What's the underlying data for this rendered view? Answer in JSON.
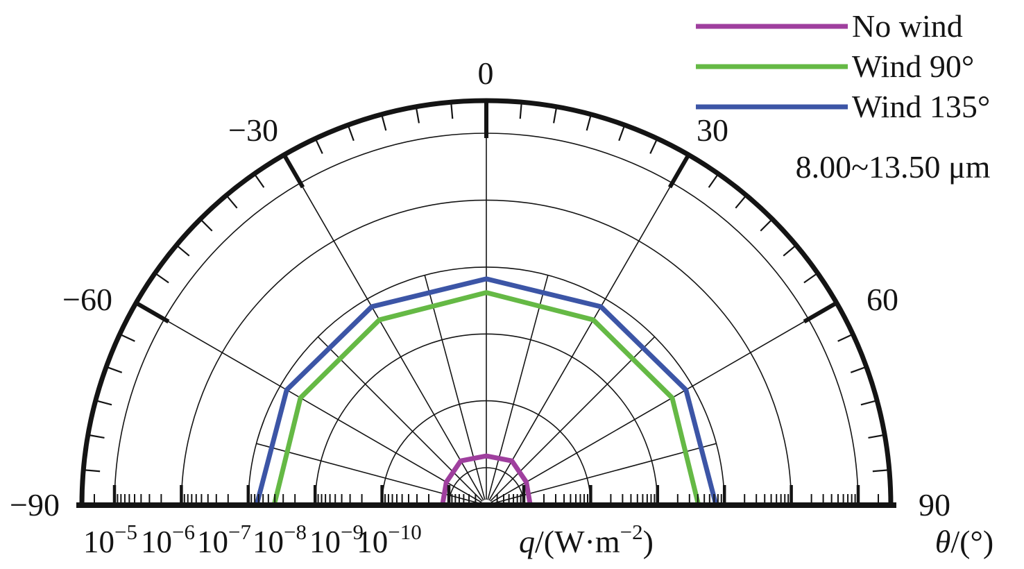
{
  "chart_data": {
    "type": "line",
    "projection": "half-polar",
    "scale": "log",
    "band_annotation": "8.00~13.50 μm",
    "angular_axis": {
      "label_parts": [
        {
          "t": "θ",
          "italic": true,
          "sup": false
        },
        {
          "t": "/(°)",
          "italic": false,
          "sup": false
        }
      ],
      "tick_labels": [
        {
          "angle": -90,
          "text": "−90"
        },
        {
          "angle": -60,
          "text": "−60"
        },
        {
          "angle": -30,
          "text": "−30"
        },
        {
          "angle": 0,
          "text": "0"
        },
        {
          "angle": 30,
          "text": "30"
        },
        {
          "angle": 60,
          "text": "60"
        },
        {
          "angle": 90,
          "text": "90"
        }
      ],
      "minor_tick_step_deg": 5,
      "major_tick_step_deg": 30,
      "spoke_step_deg": 15,
      "range_deg": [
        -90,
        90
      ]
    },
    "radial_axis": {
      "scale": "log",
      "unit_parts": [
        {
          "t": "q",
          "italic": true,
          "sup": false
        },
        {
          "t": "/(W·m",
          "italic": false,
          "sup": false
        },
        {
          "t": "−2",
          "italic": false,
          "sup": true
        },
        {
          "t": ")",
          "italic": false,
          "sup": false
        }
      ],
      "tick_labels": [
        {
          "base": "10",
          "exp": "−5",
          "value": 1e-05
        },
        {
          "base": "10",
          "exp": "−6",
          "value": 1e-06
        },
        {
          "base": "10",
          "exp": "−7",
          "value": 1e-07
        },
        {
          "base": "10",
          "exp": "−8",
          "value": 1e-08
        },
        {
          "base": "10",
          "exp": "−9",
          "value": 1e-09
        },
        {
          "base": "10",
          "exp": "−10",
          "value": 1e-10
        }
      ],
      "direction": "outward-increasing",
      "grid": true
    },
    "legend": {
      "position": "top-right",
      "items": [
        {
          "label": "No wind",
          "color": "#9F3F9E"
        },
        {
          "label": "Wind 90°",
          "color": "#65B945"
        },
        {
          "label": "Wind 135°",
          "color": "#3C55A6"
        }
      ]
    },
    "series": [
      {
        "name": "No wind",
        "color": "#9F3F9E",
        "angles_deg": [
          -90,
          -60,
          -30,
          0,
          30,
          60,
          90
        ],
        "values_w_m2": [
          1.25e-10,
          1.35e-10,
          1.6e-10,
          1.5e-10,
          1.6e-10,
          1.35e-10,
          1.25e-10
        ]
      },
      {
        "name": "Wind 90°",
        "color": "#65B945",
        "angles_deg": [
          -90,
          -60,
          -30,
          0,
          30,
          60,
          90
        ],
        "values_w_m2": [
          4.1e-08,
          4.45e-08,
          4.35e-08,
          4.15e-08,
          4.35e-08,
          4.45e-08,
          4.1e-08
        ]
      },
      {
        "name": "Wind 135°",
        "color": "#3C55A6",
        "angles_deg": [
          -90,
          -60,
          -30,
          0,
          30,
          60,
          90
        ],
        "values_w_m2": [
          7.5e-08,
          7.7e-08,
          7.35e-08,
          6.65e-08,
          7.35e-08,
          7.7e-08,
          7.5e-08
        ]
      }
    ]
  }
}
